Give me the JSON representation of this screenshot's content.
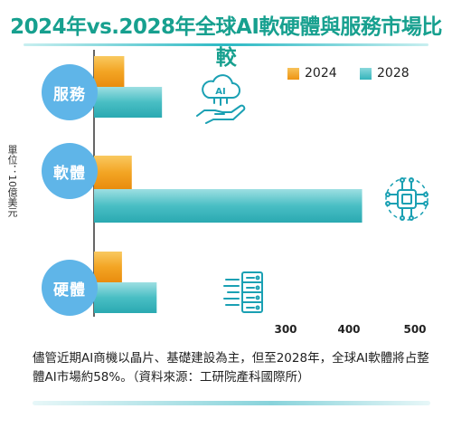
{
  "title": "2024年vs.2028年全球AI軟硬體與服務市場比較",
  "unit_label": "單位：10億美元",
  "caption": "儘管近期AI商機以晶片、基礎建設為主，但至2028年，全球AI軟體將占整體AI市場約58%。（資料來源：工研院產科國際所）",
  "colors": {
    "series_2024": "#f0a020",
    "series_2028": "#3fbcc2",
    "circle": "#5fb5e8",
    "title": "#17a08f",
    "icon": "#1aa0b3"
  },
  "icons": [
    "ai-cloud-hand-icon",
    "chip-circuit-icon",
    "server-rack-icon"
  ],
  "chart_data": {
    "type": "bar",
    "orientation": "horizontal",
    "categories": [
      "服務",
      "軟體",
      "硬體"
    ],
    "series": [
      {
        "name": "2024",
        "values": [
          115,
          125,
          112
        ]
      },
      {
        "name": "2028",
        "values": [
          165,
          430,
          158
        ]
      }
    ],
    "xticks": [
      300,
      400,
      500
    ],
    "xlim": [
      75,
      500
    ],
    "ylabel": "單位：10億美元",
    "legend": "top-right",
    "grid": false
  }
}
